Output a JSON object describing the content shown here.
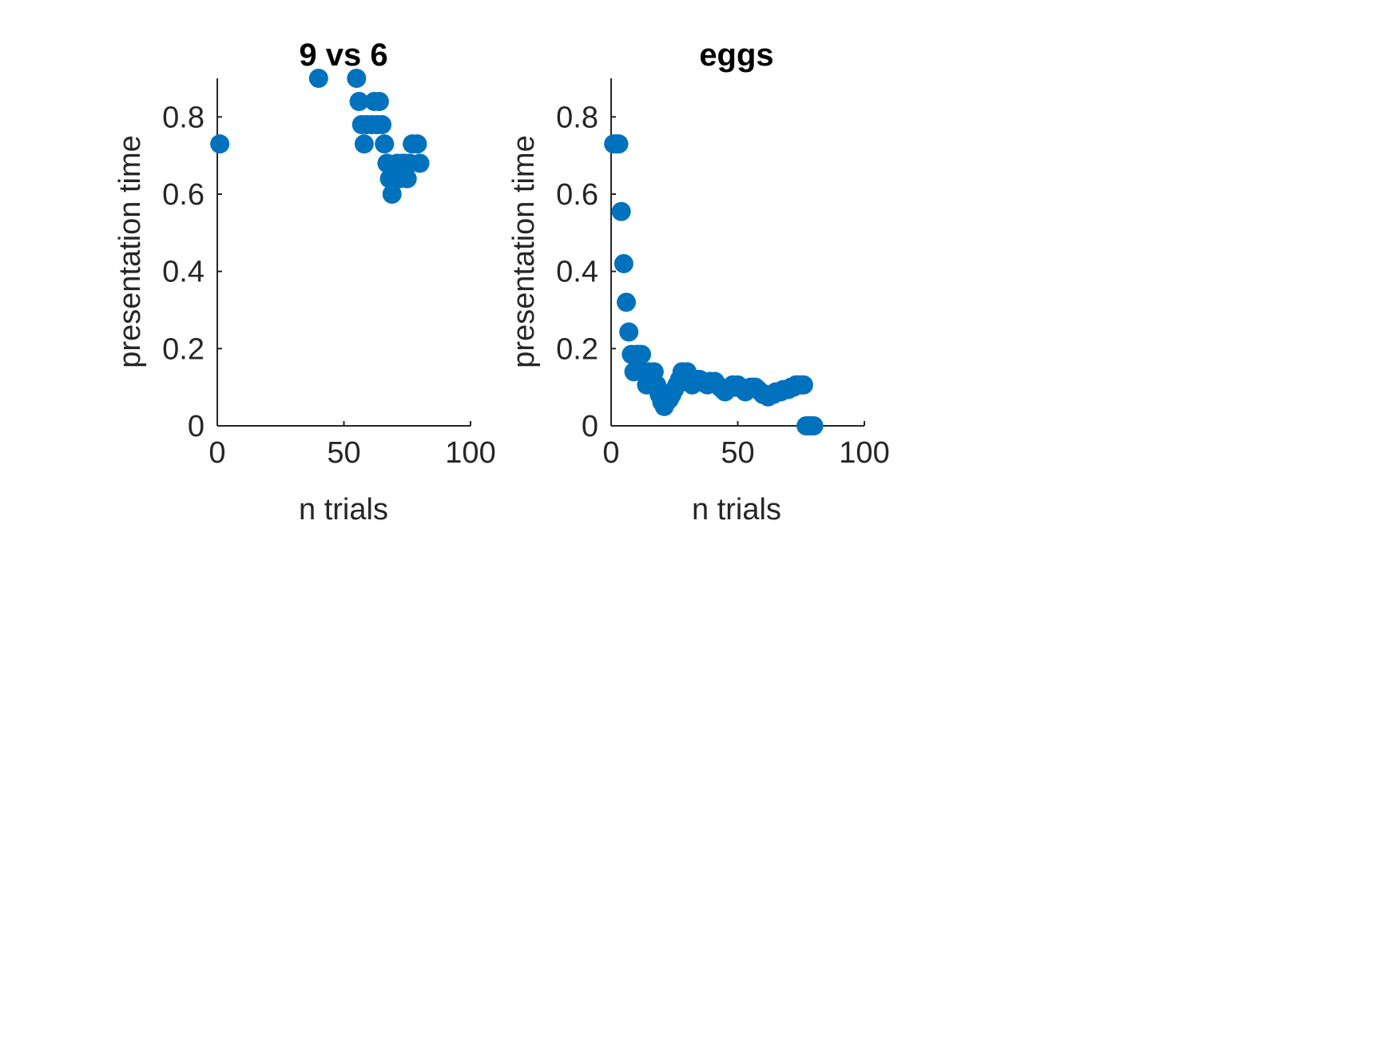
{
  "chart_data": [
    {
      "type": "scatter",
      "title": "9 vs 6",
      "xlabel": "n trials",
      "ylabel": "presentation time",
      "xlim": [
        0,
        100
      ],
      "ylim": [
        0,
        0.9
      ],
      "xticks": [
        0,
        50,
        100
      ],
      "yticks": [
        0,
        0.2,
        0.4,
        0.6,
        0.8
      ],
      "xtick_labels": [
        "0",
        "50",
        "100"
      ],
      "ytick_labels": [
        "0",
        "0.2",
        "0.4",
        "0.6",
        "0.8"
      ],
      "grid": false,
      "color": "#0072BD",
      "points": [
        [
          1,
          0.73
        ],
        [
          40,
          0.9
        ],
        [
          55,
          0.9
        ],
        [
          56,
          0.84
        ],
        [
          57,
          0.78
        ],
        [
          58,
          0.73
        ],
        [
          59,
          0.78
        ],
        [
          61,
          0.78
        ],
        [
          62,
          0.84
        ],
        [
          63,
          0.78
        ],
        [
          64,
          0.84
        ],
        [
          65,
          0.78
        ],
        [
          66,
          0.73
        ],
        [
          67,
          0.68
        ],
        [
          68,
          0.64
        ],
        [
          69,
          0.6
        ],
        [
          70,
          0.64
        ],
        [
          71,
          0.68
        ],
        [
          72,
          0.64
        ],
        [
          73,
          0.68
        ],
        [
          74,
          0.68
        ],
        [
          75,
          0.64
        ],
        [
          76,
          0.68
        ],
        [
          77,
          0.73
        ],
        [
          79,
          0.73
        ],
        [
          80,
          0.68
        ]
      ]
    },
    {
      "type": "scatter",
      "title": "eggs",
      "xlabel": "n trials",
      "ylabel": "presentation time",
      "xlim": [
        0,
        100
      ],
      "ylim": [
        0,
        0.9
      ],
      "xticks": [
        0,
        50,
        100
      ],
      "yticks": [
        0,
        0.2,
        0.4,
        0.6,
        0.8
      ],
      "xtick_labels": [
        "0",
        "50",
        "100"
      ],
      "ytick_labels": [
        "0",
        "0.2",
        "0.4",
        "0.6",
        "0.8"
      ],
      "grid": false,
      "color": "#0072BD",
      "points": [
        [
          1,
          0.73
        ],
        [
          2,
          0.73
        ],
        [
          3,
          0.73
        ],
        [
          4,
          0.555
        ],
        [
          5,
          0.42
        ],
        [
          6,
          0.32
        ],
        [
          7,
          0.243
        ],
        [
          8,
          0.185
        ],
        [
          9,
          0.14
        ],
        [
          10,
          0.185
        ],
        [
          11,
          0.185
        ],
        [
          12,
          0.185
        ],
        [
          13,
          0.14
        ],
        [
          14,
          0.106
        ],
        [
          15,
          0.14
        ],
        [
          16,
          0.106
        ],
        [
          17,
          0.14
        ],
        [
          18,
          0.106
        ],
        [
          19,
          0.081
        ],
        [
          20,
          0.062
        ],
        [
          21,
          0.05
        ],
        [
          22,
          0.062
        ],
        [
          23,
          0.069
        ],
        [
          24,
          0.081
        ],
        [
          25,
          0.094
        ],
        [
          26,
          0.106
        ],
        [
          27,
          0.12
        ],
        [
          28,
          0.14
        ],
        [
          29,
          0.133
        ],
        [
          30,
          0.14
        ],
        [
          31,
          0.12
        ],
        [
          32,
          0.106
        ],
        [
          33,
          0.12
        ],
        [
          34,
          0.12
        ],
        [
          35,
          0.12
        ],
        [
          36,
          0.115
        ],
        [
          37,
          0.11
        ],
        [
          38,
          0.106
        ],
        [
          39,
          0.115
        ],
        [
          40,
          0.11
        ],
        [
          41,
          0.115
        ],
        [
          42,
          0.106
        ],
        [
          43,
          0.1
        ],
        [
          44,
          0.094
        ],
        [
          45,
          0.088
        ],
        [
          46,
          0.094
        ],
        [
          47,
          0.1
        ],
        [
          48,
          0.106
        ],
        [
          49,
          0.1
        ],
        [
          50,
          0.106
        ],
        [
          51,
          0.1
        ],
        [
          52,
          0.094
        ],
        [
          53,
          0.088
        ],
        [
          54,
          0.094
        ],
        [
          55,
          0.1
        ],
        [
          56,
          0.1
        ],
        [
          57,
          0.1
        ],
        [
          58,
          0.094
        ],
        [
          59,
          0.088
        ],
        [
          60,
          0.081
        ],
        [
          61,
          0.081
        ],
        [
          62,
          0.075
        ],
        [
          63,
          0.081
        ],
        [
          64,
          0.081
        ],
        [
          65,
          0.088
        ],
        [
          66,
          0.088
        ],
        [
          67,
          0.088
        ],
        [
          68,
          0.094
        ],
        [
          69,
          0.094
        ],
        [
          70,
          0.094
        ],
        [
          71,
          0.1
        ],
        [
          72,
          0.1
        ],
        [
          73,
          0.106
        ],
        [
          74,
          0.106
        ],
        [
          75,
          0.106
        ],
        [
          76,
          0.106
        ],
        [
          77,
          0.0
        ],
        [
          78,
          0.0
        ],
        [
          79,
          0.0
        ],
        [
          80,
          0.0
        ]
      ]
    }
  ]
}
